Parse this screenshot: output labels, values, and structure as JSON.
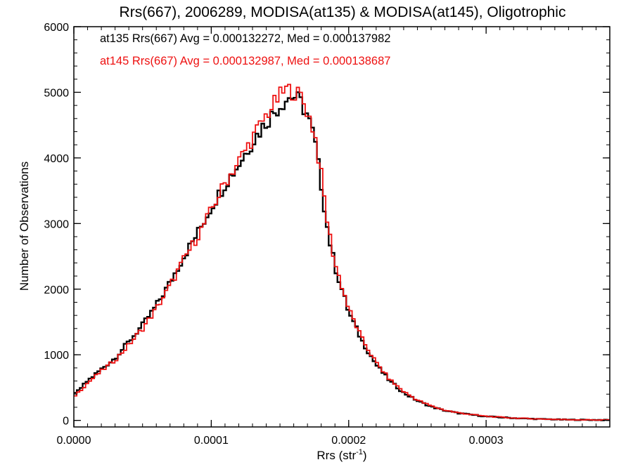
{
  "chart_data": {
    "type": "line",
    "step": true,
    "title": "Rrs(667), 2006289, MODISA(at135) & MODISA(at145), Oligotrophic",
    "xlabel_main": "Rrs (str",
    "xlabel_sup": "-1",
    "xlabel_close": ")",
    "ylabel": "Number of Observations",
    "xlim": [
      0.0,
      0.00039
    ],
    "ylim": [
      -100,
      6000
    ],
    "xticks": [
      0.0,
      0.0001,
      0.0002,
      0.0003
    ],
    "xtick_labels": [
      "0.0000",
      "0.0001",
      "0.0002",
      "0.0003"
    ],
    "yticks": [
      0,
      1000,
      2000,
      3000,
      4000,
      5000,
      6000
    ],
    "ytick_labels": [
      "0",
      "1000",
      "2000",
      "3000",
      "4000",
      "5000",
      "6000"
    ],
    "legend_position": "top-left",
    "series": [
      {
        "name": "at135",
        "color": "#000000",
        "legend_text": "at135 Rrs(667) Avg = 0.000132272, Med = 0.000137982",
        "x": [
          0.0,
          1e-05,
          2e-05,
          3e-05,
          4e-05,
          5e-05,
          6e-05,
          7e-05,
          8e-05,
          9e-05,
          0.0001,
          0.00011,
          0.00012,
          0.00013,
          0.00014,
          0.00015,
          0.000155,
          0.00016,
          0.000165,
          0.00017,
          0.000175,
          0.00018,
          0.000185,
          0.00019,
          0.000195,
          0.0002,
          0.00021,
          0.00022,
          0.00023,
          0.00024,
          0.00025,
          0.00026,
          0.00027,
          0.00028,
          0.0003,
          0.00032,
          0.00034,
          0.00036,
          0.00039
        ],
        "y": [
          380,
          600,
          780,
          950,
          1200,
          1450,
          1750,
          2100,
          2500,
          2850,
          3250,
          3600,
          3900,
          4250,
          4550,
          4800,
          4900,
          4950,
          4850,
          4650,
          4300,
          3600,
          2850,
          2350,
          2000,
          1650,
          1200,
          850,
          600,
          420,
          300,
          210,
          150,
          110,
          60,
          35,
          20,
          10,
          5
        ]
      },
      {
        "name": "at145",
        "color": "#ee1111",
        "legend_text": "at145 Rrs(667) Avg = 0.000132987, Med = 0.000138687",
        "x": [
          0.0,
          1e-05,
          2e-05,
          3e-05,
          4e-05,
          5e-05,
          6e-05,
          7e-05,
          8e-05,
          9e-05,
          0.0001,
          0.00011,
          0.00012,
          0.00013,
          0.00014,
          0.00015,
          0.000155,
          0.00016,
          0.000165,
          0.00017,
          0.000175,
          0.00018,
          0.000185,
          0.00019,
          0.000195,
          0.0002,
          0.00021,
          0.00022,
          0.00023,
          0.00024,
          0.00025,
          0.00026,
          0.00027,
          0.00028,
          0.0003,
          0.00032,
          0.00034,
          0.00036,
          0.00039
        ],
        "y": [
          360,
          570,
          750,
          920,
          1150,
          1400,
          1700,
          2050,
          2450,
          2800,
          3200,
          3620,
          3950,
          4300,
          4650,
          4950,
          5050,
          5000,
          4950,
          4700,
          4400,
          3750,
          2950,
          2400,
          2050,
          1700,
          1230,
          880,
          620,
          440,
          310,
          220,
          155,
          115,
          62,
          36,
          21,
          11,
          5
        ]
      }
    ]
  }
}
